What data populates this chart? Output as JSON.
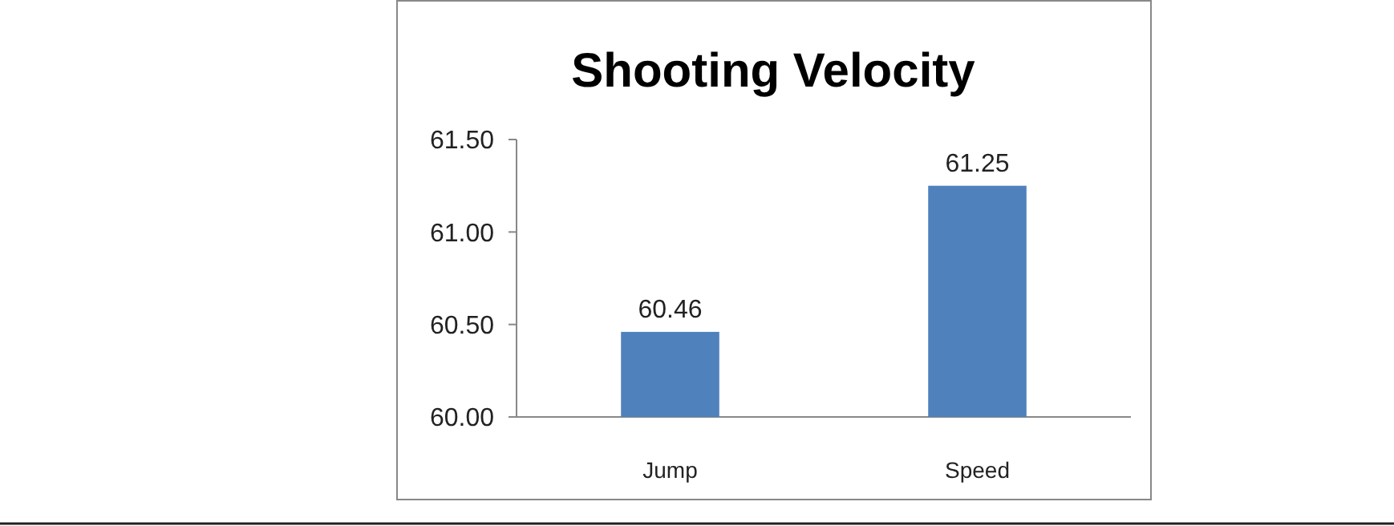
{
  "chart_data": {
    "type": "bar",
    "title": "Shooting Velocity",
    "categories": [
      "Jump",
      "Speed"
    ],
    "values": [
      60.46,
      61.25
    ],
    "color": "#4f81bd",
    "ylim": [
      60,
      61.5
    ],
    "yticks": [
      {
        "value": 60,
        "label": "60.00"
      },
      {
        "value": 60.5,
        "label": "60.50"
      },
      {
        "value": 61,
        "label": "61.00"
      },
      {
        "value": 61.5,
        "label": "61.50"
      }
    ],
    "data_labels": true,
    "grid": false
  }
}
